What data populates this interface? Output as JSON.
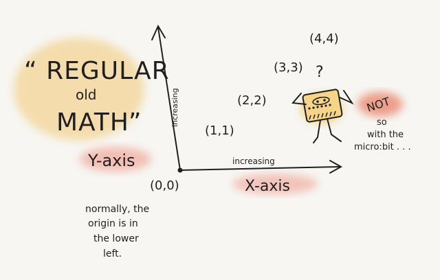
{
  "title": {
    "line1": "“ REGULAR",
    "line2": "old",
    "line3": "MATH”"
  },
  "axes": {
    "y_label": "Y-axis",
    "x_label": "X-axis",
    "y_increasing": "increasing",
    "x_increasing": "increasing"
  },
  "points": [
    {
      "label": "(0,0)"
    },
    {
      "label": "(1,1)"
    },
    {
      "label": "(2,2)"
    },
    {
      "label": "(3,3)"
    },
    {
      "label": "(4,4)"
    }
  ],
  "origin_note": [
    "normally, the",
    "origin is in",
    "the lower",
    "left."
  ],
  "microbit": {
    "question": "?",
    "not_label": "NOT",
    "note": [
      "so",
      "with the",
      "micro:bit . . ."
    ]
  },
  "colors": {
    "ink": "#1f1f1f",
    "yellow_highlight": "#f2c874",
    "pink_highlight": "#ef9a8c",
    "red_highlight": "#e9785f",
    "robot_fill": "#f3c35f",
    "background": "#f7f6f2"
  }
}
